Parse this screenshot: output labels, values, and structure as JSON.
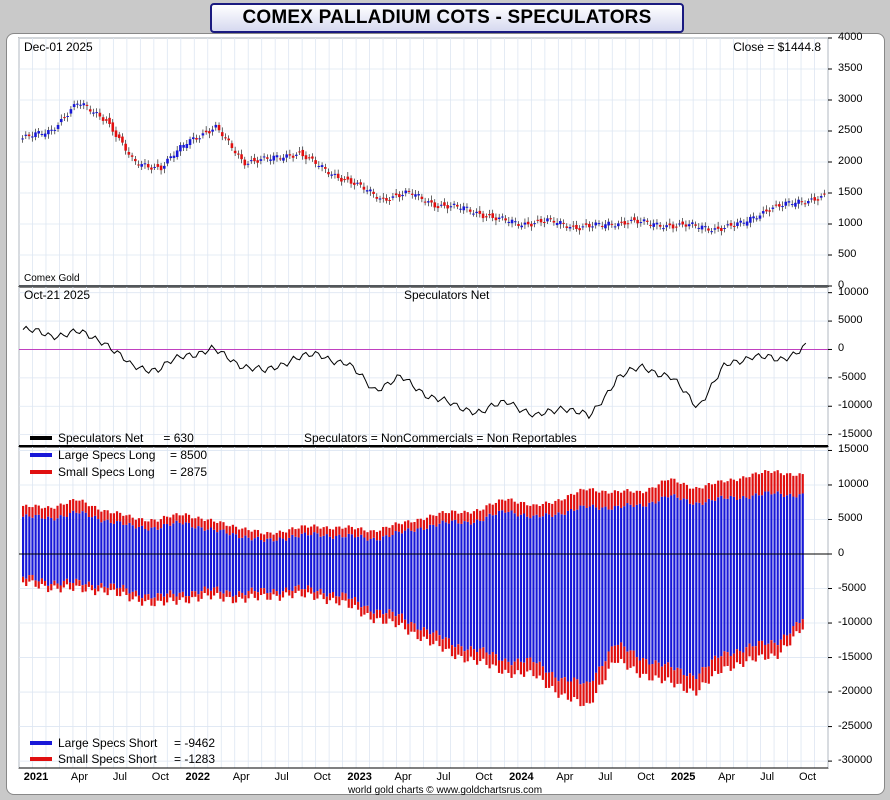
{
  "header": {
    "title": "COMEX PALLADIUM COTS - SPECULATORS"
  },
  "colors": {
    "blue": "#1818d8",
    "red": "#e01010",
    "line": "#000000",
    "zero_line": "#c040c0",
    "grid": "#dde6f2"
  },
  "panels": {
    "price": {
      "date_label": "Dec-01  2025",
      "close_label": "Close = $1444.8",
      "source_label": "Comex Gold"
    },
    "net": {
      "date_label": "Oct-21  2025",
      "title": "Speculators Net",
      "legend_label": "Speculators Net",
      "legend_value": "= 630",
      "note": "Speculators = NonCommercials = Non Reportables"
    },
    "positions": {
      "legend_long": [
        {
          "label": "Large Specs Long",
          "value": "= 8500",
          "color": "blue"
        },
        {
          "label": "Small Specs Long",
          "value": "= 2875",
          "color": "red"
        }
      ],
      "legend_short": [
        {
          "label": "Large Specs Short",
          "value": "= -9462",
          "color": "blue"
        },
        {
          "label": "Small Specs Short",
          "value": "= -1283",
          "color": "red"
        }
      ]
    }
  },
  "footer": {
    "credit": "world gold charts © www.goldchartsrus.com"
  },
  "chart_data": [
    {
      "type": "candlestick",
      "title": "COMEX Palladium price",
      "ylim": [
        0,
        4000
      ],
      "yticks": [
        0,
        500,
        1000,
        1500,
        2000,
        2500,
        3000,
        3500,
        4000
      ],
      "x": [
        "2021-01",
        "2021-03",
        "2021-05",
        "2021-07",
        "2021-09",
        "2021-11",
        "2022-01",
        "2022-03",
        "2022-05",
        "2022-07",
        "2022-09",
        "2022-11",
        "2023-01",
        "2023-03",
        "2023-05",
        "2023-07",
        "2023-09",
        "2023-11",
        "2024-01",
        "2024-03",
        "2024-05",
        "2024-07",
        "2024-09",
        "2024-11",
        "2025-01",
        "2025-03",
        "2025-05",
        "2025-07",
        "2025-09",
        "2025-11"
      ],
      "values": [
        2380,
        2500,
        2950,
        2700,
        2000,
        1900,
        2350,
        2550,
        2000,
        2050,
        2150,
        1850,
        1650,
        1400,
        1500,
        1300,
        1250,
        1100,
        1000,
        1050,
        950,
        980,
        1050,
        980,
        980,
        920,
        1000,
        1250,
        1350,
        1444.8
      ]
    },
    {
      "type": "line",
      "title": "Speculators Net",
      "ylim": [
        -17000,
        11000
      ],
      "yticks": [
        -15000,
        -10000,
        -5000,
        0,
        5000,
        10000
      ],
      "x": [
        "2021-01",
        "2021-03",
        "2021-05",
        "2021-07",
        "2021-09",
        "2021-11",
        "2022-01",
        "2022-03",
        "2022-05",
        "2022-07",
        "2022-09",
        "2022-11",
        "2023-01",
        "2023-03",
        "2023-05",
        "2023-07",
        "2023-09",
        "2023-11",
        "2024-01",
        "2024-03",
        "2024-05",
        "2024-07",
        "2024-09",
        "2024-11",
        "2025-01",
        "2025-03",
        "2025-05",
        "2025-07",
        "2025-09",
        "2025-10"
      ],
      "values": [
        3500,
        2500,
        3000,
        1500,
        -3000,
        -3500,
        -1000,
        0,
        -2500,
        -4000,
        -1500,
        -1000,
        -2500,
        -7000,
        -5000,
        -8000,
        -10000,
        -11000,
        -9000,
        -12000,
        -10000,
        -12000,
        -5000,
        -3000,
        -5000,
        -10000,
        -3000,
        -1000,
        -2000,
        630
      ]
    },
    {
      "type": "bar",
      "title": "Speculators long and short positions",
      "ylim": [
        -31000,
        15500
      ],
      "yticks": [
        -30000,
        -25000,
        -20000,
        -15000,
        -10000,
        -5000,
        0,
        5000,
        10000,
        15000
      ],
      "x": [
        "2021-01",
        "2021-03",
        "2021-05",
        "2021-07",
        "2021-09",
        "2021-11",
        "2022-01",
        "2022-03",
        "2022-05",
        "2022-07",
        "2022-09",
        "2022-11",
        "2023-01",
        "2023-03",
        "2023-05",
        "2023-07",
        "2023-09",
        "2023-11",
        "2024-01",
        "2024-03",
        "2024-05",
        "2024-07",
        "2024-09",
        "2024-11",
        "2025-01",
        "2025-03",
        "2025-05",
        "2025-07",
        "2025-09",
        "2025-10"
      ],
      "series": [
        {
          "name": "Large Specs Long",
          "values": [
            5400,
            5200,
            6000,
            5000,
            4000,
            3800,
            4600,
            3400,
            2800,
            1800,
            2600,
            2800,
            2600,
            2200,
            3000,
            4000,
            4600,
            4800,
            6400,
            5200,
            6000,
            6800,
            6800,
            7000,
            8400,
            7400,
            8000,
            8400,
            8800,
            8500
          ]
        },
        {
          "name": "Small Specs Long",
          "values": [
            1400,
            1600,
            1800,
            1400,
            1300,
            1100,
            1300,
            1300,
            1200,
            1000,
            1100,
            1200,
            1200,
            1200,
            1300,
            1400,
            1500,
            1500,
            1800,
            1600,
            2000,
            2600,
            2200,
            2000,
            2400,
            2200,
            2400,
            3000,
            3200,
            2875
          ]
        },
        {
          "name": "Large Specs Short",
          "values": [
            -3400,
            -4000,
            -4200,
            -4400,
            -5400,
            -6200,
            -5600,
            -5200,
            -5600,
            -5400,
            -5000,
            -5200,
            -6200,
            -8000,
            -9000,
            -11000,
            -13000,
            -14000,
            -15400,
            -15600,
            -18000,
            -19000,
            -13000,
            -15000,
            -16400,
            -17600,
            -14600,
            -13400,
            -12800,
            -9462
          ]
        },
        {
          "name": "Small Specs Short",
          "values": [
            -800,
            -900,
            -900,
            -900,
            -1000,
            -1100,
            -1000,
            -1000,
            -1000,
            -900,
            -900,
            -1000,
            -1100,
            -1300,
            -1400,
            -1500,
            -1600,
            -1700,
            -1800,
            -1900,
            -2400,
            -3200,
            -2400,
            -2400,
            -2200,
            -2400,
            -2200,
            -2000,
            -2000,
            -1283
          ]
        }
      ]
    }
  ],
  "xaxis": {
    "ticks": [
      "2021",
      "Apr",
      "Jul",
      "Oct",
      "2022",
      "Apr",
      "Jul",
      "Oct",
      "2023",
      "Apr",
      "Jul",
      "Oct",
      "2024",
      "Apr",
      "Jul",
      "Oct",
      "2025",
      "Apr",
      "Jul",
      "Oct"
    ],
    "years": [
      "2021",
      "2022",
      "2023",
      "2024",
      "2025"
    ]
  }
}
